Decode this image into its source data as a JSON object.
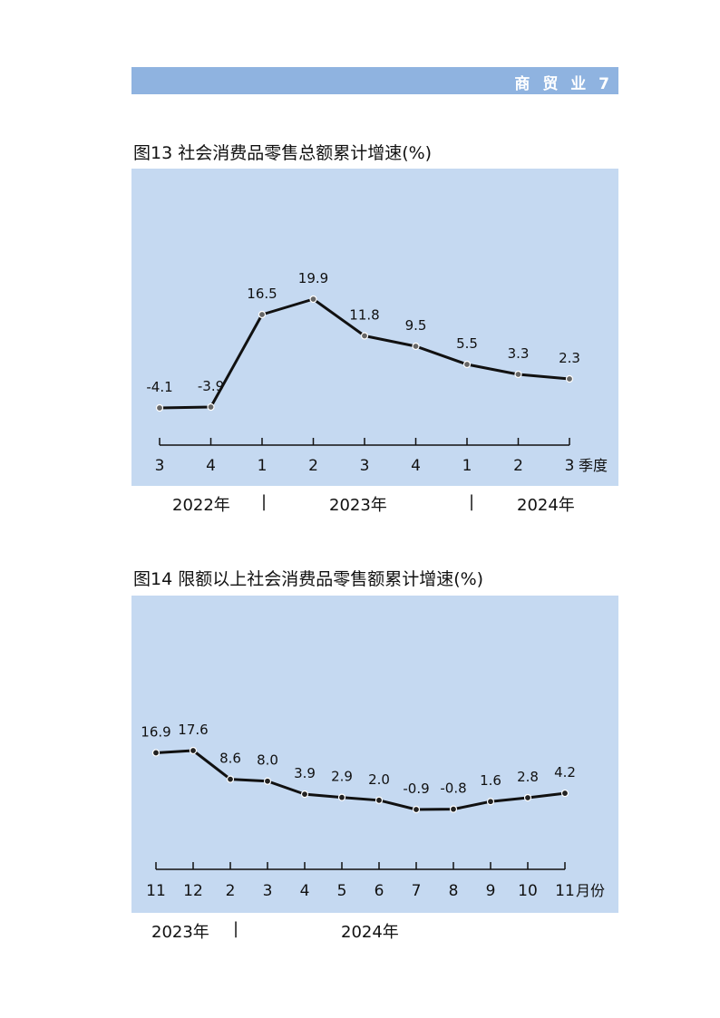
{
  "header": {
    "section_label": "商 贸 业 7"
  },
  "figures": [
    {
      "title": "图13  社会消费品零售总额累计增速(%)"
    },
    {
      "title": "图14  限额以上社会消费品零售额累计增速(%)"
    }
  ],
  "chart_data": [
    {
      "type": "line",
      "title": "图13  社会消费品零售总额累计增速(%)",
      "categories": [
        "3",
        "4",
        "1",
        "2",
        "3",
        "4",
        "1",
        "2",
        "3"
      ],
      "values": [
        -4.1,
        -3.9,
        16.5,
        19.9,
        11.8,
        9.5,
        5.5,
        3.3,
        2.3
      ],
      "data_labels": [
        "-4.1",
        "-3.9",
        "16.5",
        "19.9",
        "11.8",
        "9.5",
        "5.5",
        "3.3",
        "2.3"
      ],
      "x_unit": "季度",
      "year_groups": [
        "2022年",
        "2023年",
        "2024年"
      ],
      "year_separator": "|",
      "ylim": [
        -40,
        40
      ],
      "colors": {
        "background": "#c5d9f1",
        "line": "#111111",
        "marker_fill": "#666666"
      }
    },
    {
      "type": "line",
      "title": "图14  限额以上社会消费品零售额累计增速(%)",
      "categories": [
        "11",
        "12",
        "2",
        "3",
        "4",
        "5",
        "6",
        "7",
        "8",
        "9",
        "10",
        "11"
      ],
      "values": [
        16.9,
        17.6,
        8.6,
        8.0,
        3.9,
        2.9,
        2.0,
        -0.9,
        -0.8,
        1.6,
        2.8,
        4.2
      ],
      "data_labels": [
        "16.9",
        "17.6",
        "8.6",
        "8.0",
        "3.9",
        "2.9",
        "2.0",
        "-0.9",
        "-0.8",
        "1.6",
        "2.8",
        "4.2"
      ],
      "x_unit": "月份",
      "year_groups": [
        "2023年",
        "2024年"
      ],
      "year_separator": "|",
      "ylim": [
        -40,
        40
      ],
      "colors": {
        "background": "#c5d9f1",
        "line": "#111111",
        "marker_fill": "#222222"
      }
    }
  ]
}
